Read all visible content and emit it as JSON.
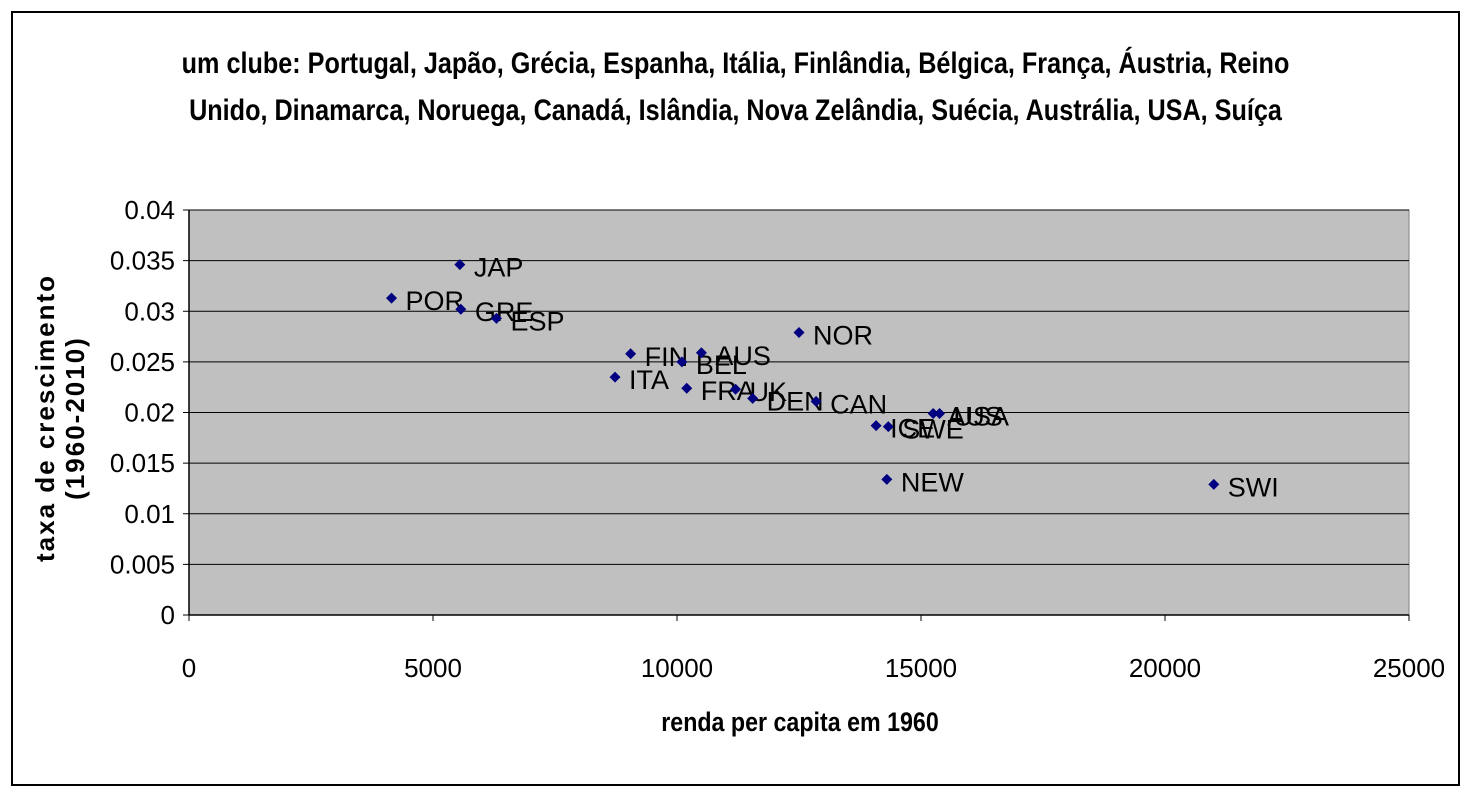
{
  "chart_data": {
    "type": "scatter",
    "title": "um clube: Portugal, Japão, Grécia, Espanha, Itália, Finlândia, Bélgica, França, Áustria, Reino Unido, Dinamarca, Noruega, Canadá, Islândia, Nova Zelândia, Suécia, Austrália, USA, Suíça",
    "title_lines": [
      "um clube: Portugal, Japão, Grécia, Espanha, Itália, Finlândia, Bélgica, França, Áustria, Reino",
      "Unido, Dinamarca, Noruega, Canadá, Islândia, Nova Zelândia, Suécia, Austrália, USA, Suíça"
    ],
    "xlabel": "renda per capita em 1960",
    "ylabel_lines": [
      "taxa de crescimento",
      "(1960-2010)"
    ],
    "xlim": [
      0,
      25000
    ],
    "ylim": [
      0,
      0.04
    ],
    "x_ticks": [
      "0",
      "5000",
      "10000",
      "15000",
      "20000",
      "25000"
    ],
    "y_ticks": [
      "0",
      "0.005",
      "0.01",
      "0.015",
      "0.02",
      "0.025",
      "0.03",
      "0.035",
      "0.04"
    ],
    "grid": "horizontal",
    "plot_background": "#c0c0c0",
    "marker_color": "#000080",
    "points": [
      {
        "label": "POR",
        "x": 4150,
        "y": 0.0313
      },
      {
        "label": "JAP",
        "x": 5550,
        "y": 0.0346
      },
      {
        "label": "GRE",
        "x": 5570,
        "y": 0.0302
      },
      {
        "label": "ESP",
        "x": 6300,
        "y": 0.0293
      },
      {
        "label": "ITA",
        "x": 8730,
        "y": 0.0235
      },
      {
        "label": "FIN",
        "x": 9050,
        "y": 0.0258
      },
      {
        "label": "BEL",
        "x": 10100,
        "y": 0.025
      },
      {
        "label": "FRA",
        "x": 10200,
        "y": 0.0224
      },
      {
        "label": "AUS",
        "x": 10500,
        "y": 0.0259
      },
      {
        "label": "UK",
        "x": 11200,
        "y": 0.0223
      },
      {
        "label": "DEN",
        "x": 11550,
        "y": 0.0214
      },
      {
        "label": "NOR",
        "x": 12500,
        "y": 0.0279
      },
      {
        "label": "CAN",
        "x": 12850,
        "y": 0.0211
      },
      {
        "label": "ICE",
        "x": 14080,
        "y": 0.0187
      },
      {
        "label": "SWE",
        "x": 14330,
        "y": 0.0186
      },
      {
        "label": "NEW",
        "x": 14300,
        "y": 0.0134
      },
      {
        "label": "AUS",
        "x": 15250,
        "y": 0.0199
      },
      {
        "label": "USA",
        "x": 15380,
        "y": 0.0199
      },
      {
        "label": "SWI",
        "x": 21000,
        "y": 0.0129
      }
    ]
  }
}
